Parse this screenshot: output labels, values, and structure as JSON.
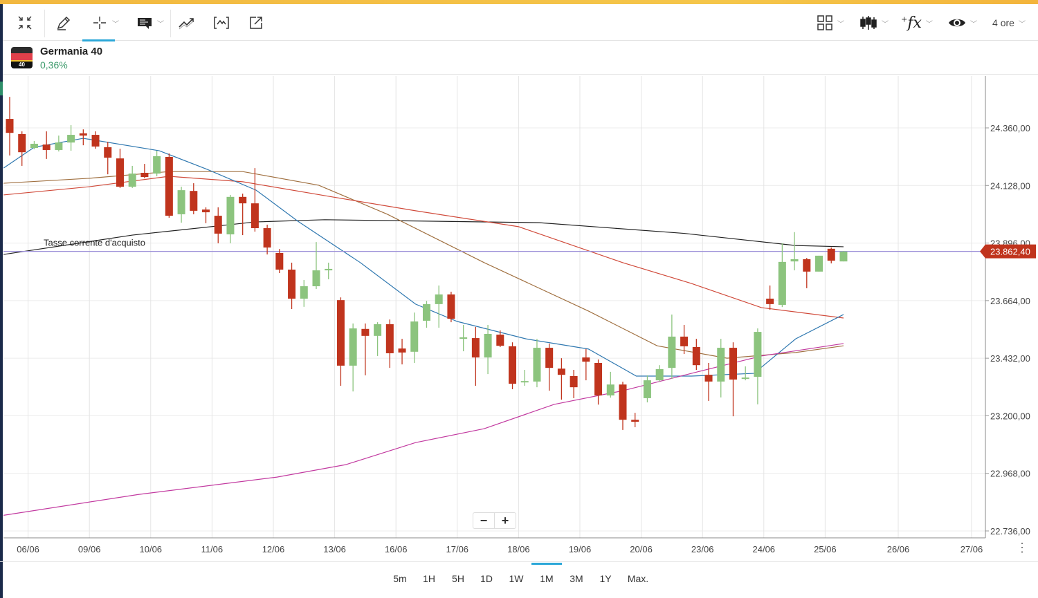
{
  "toolbar": {
    "left_icons": [
      "collapse-icon",
      "pencil-icon",
      "crosshair-icon",
      "comment-icon",
      "trend-icon",
      "indicator-bracket-icon",
      "external-open-icon"
    ],
    "right_icons": [
      "layout-grid-icon",
      "candlestick-icon",
      "function-fx-icon",
      "eye-icon"
    ],
    "interval_label": "4 ore"
  },
  "instrument": {
    "name": "Germania 40",
    "change": "0,36%",
    "flag_label": "40"
  },
  "zoom": {
    "minus": "−",
    "plus": "+"
  },
  "timeframes": [
    "5m",
    "1H",
    "5H",
    "1D",
    "1W",
    "1M",
    "3M",
    "1Y",
    "Max."
  ],
  "selected_timeframe": "1M",
  "more_label": "⋮",
  "colors": {
    "up": "#8cc47e",
    "down": "#c0341d",
    "price_line": "#9c8fd8",
    "ma_black": "#222222",
    "ma_brown": "#a07040",
    "ma_red": "#d04a3a",
    "ma_blue": "#2f78b0",
    "ma_magenta": "#c23aa0"
  },
  "chart_data": {
    "type": "candlestick",
    "y_ticks": [
      "24.360,00",
      "24.128,00",
      "23.896,00",
      "23.664,00",
      "23.432,00",
      "23.200,00",
      "22.968,00",
      "22.736,00"
    ],
    "y_tick_values": [
      24360,
      24128,
      23896,
      23664,
      23432,
      23200,
      22968,
      22736
    ],
    "ylim": [
      22700,
      24560
    ],
    "x_labels": [
      "06/06",
      "09/06",
      "10/06",
      "11/06",
      "12/06",
      "13/06",
      "16/06",
      "17/06",
      "18/06",
      "19/06",
      "20/06",
      "23/06",
      "24/06",
      "25/06",
      "26/06",
      "27/06"
    ],
    "x_label_index": [
      1.5,
      6.5,
      11.5,
      16.5,
      21.5,
      26.5,
      31.5,
      36.5,
      41.5,
      46.5,
      51.5,
      56.5,
      61.5,
      66.5,
      72.5,
      78.5
    ],
    "xlim_index": [
      -0.5,
      79.5
    ],
    "current_price": {
      "label": "Tasse corrente d'acquisto",
      "value": 23862.4,
      "value_label": "23.862,40"
    },
    "ohlc": [
      [
        24396,
        24485,
        24249,
        24340
      ],
      [
        24335,
        24346,
        24207,
        24262
      ],
      [
        24279,
        24307,
        24274,
        24296
      ],
      [
        24293,
        24346,
        24235,
        24271
      ],
      [
        24271,
        24329,
        24265,
        24301
      ],
      [
        24301,
        24371,
        24268,
        24332
      ],
      [
        24338,
        24354,
        24290,
        24329
      ],
      [
        24332,
        24346,
        24276,
        24285
      ],
      [
        24282,
        24304,
        24173,
        24240
      ],
      [
        24237,
        24276,
        24118,
        24123
      ],
      [
        24123,
        24207,
        24118,
        24176
      ],
      [
        24179,
        24215,
        24157,
        24162
      ],
      [
        24176,
        24268,
        24165,
        24246
      ],
      [
        24243,
        24257,
        23998,
        24006
      ],
      [
        24012,
        24123,
        23978,
        24109
      ],
      [
        24106,
        24137,
        24012,
        24026
      ],
      [
        24031,
        24040,
        23976,
        24020
      ],
      [
        24006,
        24040,
        23895,
        23934
      ],
      [
        23931,
        24090,
        23895,
        24082
      ],
      [
        24082,
        24095,
        23928,
        24056
      ],
      [
        24056,
        24198,
        23942,
        23956
      ],
      [
        23956,
        23970,
        23850,
        23878
      ],
      [
        23856,
        23872,
        23775,
        23789
      ],
      [
        23789,
        23817,
        23630,
        23672
      ],
      [
        23672,
        23747,
        23639,
        23722
      ],
      [
        23722,
        23900,
        23711,
        23786
      ],
      [
        23786,
        23817,
        23750,
        23792
      ],
      [
        23666,
        23677,
        23321,
        23402
      ],
      [
        23402,
        23572,
        23298,
        23552
      ],
      [
        23550,
        23572,
        23363,
        23522
      ],
      [
        23522,
        23577,
        23441,
        23569
      ],
      [
        23569,
        23588,
        23393,
        23452
      ],
      [
        23471,
        23510,
        23407,
        23455
      ],
      [
        23458,
        23616,
        23413,
        23580
      ],
      [
        23583,
        23663,
        23555,
        23650
      ],
      [
        23650,
        23725,
        23555,
        23689
      ],
      [
        23689,
        23700,
        23577,
        23591
      ],
      [
        23510,
        23566,
        23460,
        23516
      ],
      [
        23513,
        23558,
        23321,
        23435
      ],
      [
        23435,
        23566,
        23368,
        23530
      ],
      [
        23527,
        23544,
        23477,
        23482
      ],
      [
        23480,
        23496,
        23307,
        23329
      ],
      [
        23335,
        23385,
        23321,
        23340
      ],
      [
        23338,
        23510,
        23315,
        23474
      ],
      [
        23474,
        23491,
        23301,
        23393
      ],
      [
        23390,
        23432,
        23265,
        23365
      ],
      [
        23360,
        23385,
        23271,
        23315
      ],
      [
        23435,
        23469,
        23343,
        23418
      ],
      [
        23413,
        23427,
        23245,
        23282
      ],
      [
        23282,
        23377,
        23273,
        23326
      ],
      [
        23326,
        23337,
        23143,
        23184
      ],
      [
        23184,
        23212,
        23154,
        23176
      ],
      [
        23271,
        23363,
        23254,
        23343
      ],
      [
        23343,
        23404,
        23338,
        23388
      ],
      [
        23393,
        23608,
        23349,
        23519
      ],
      [
        23519,
        23566,
        23449,
        23480
      ],
      [
        23477,
        23510,
        23385,
        23404
      ],
      [
        23365,
        23413,
        23260,
        23338
      ],
      [
        23338,
        23510,
        23274,
        23474
      ],
      [
        23474,
        23496,
        23198,
        23346
      ],
      [
        23349,
        23399,
        23343,
        23354
      ],
      [
        23357,
        23552,
        23246,
        23538
      ],
      [
        23672,
        23725,
        23627,
        23650
      ],
      [
        23647,
        23895,
        23638,
        23820
      ],
      [
        23822,
        23940,
        23786,
        23831
      ],
      [
        23831,
        23836,
        23714,
        23781
      ],
      [
        23781,
        23845,
        23781,
        23845
      ],
      [
        23873,
        23878,
        23814,
        23825
      ],
      [
        23822,
        23864,
        23822,
        23862
      ]
    ],
    "series": [
      {
        "name": "ma_black",
        "color_key": "ma_black",
        "points": [
          [
            -0.5,
            23850
          ],
          [
            10,
            23928
          ],
          [
            20,
            23981
          ],
          [
            25.7,
            23990
          ],
          [
            43.2,
            23978
          ],
          [
            55,
            23935
          ],
          [
            64.1,
            23886
          ],
          [
            68,
            23881
          ]
        ]
      },
      {
        "name": "ma_brown",
        "color_key": "ma_brown",
        "points": [
          [
            -0.5,
            24137
          ],
          [
            6.5,
            24157
          ],
          [
            13,
            24184
          ],
          [
            19,
            24184
          ],
          [
            25.2,
            24129
          ],
          [
            30.8,
            24012
          ],
          [
            38.7,
            23817
          ],
          [
            47.2,
            23622
          ],
          [
            52.8,
            23482
          ],
          [
            58.5,
            23432
          ],
          [
            64.1,
            23455
          ],
          [
            68,
            23482
          ]
        ]
      },
      {
        "name": "ma_red",
        "color_key": "ma_red",
        "points": [
          [
            -0.5,
            24090
          ],
          [
            6.5,
            24123
          ],
          [
            13,
            24165
          ],
          [
            19,
            24143
          ],
          [
            26.3,
            24082
          ],
          [
            33.1,
            24026
          ],
          [
            41.5,
            23962
          ],
          [
            50,
            23817
          ],
          [
            55.6,
            23733
          ],
          [
            61.3,
            23636
          ],
          [
            68,
            23594
          ]
        ]
      },
      {
        "name": "ma_blue",
        "color_key": "ma_blue",
        "points": [
          [
            -0.5,
            24198
          ],
          [
            2,
            24282
          ],
          [
            6,
            24318
          ],
          [
            12.2,
            24268
          ],
          [
            16.1,
            24193
          ],
          [
            20.1,
            24109
          ],
          [
            23.5,
            23984
          ],
          [
            28.6,
            23817
          ],
          [
            33.1,
            23650
          ],
          [
            36.5,
            23580
          ],
          [
            42.1,
            23510
          ],
          [
            47.2,
            23469
          ],
          [
            51.1,
            23360
          ],
          [
            55.6,
            23360
          ],
          [
            60.7,
            23371
          ],
          [
            64.1,
            23510
          ],
          [
            68,
            23608
          ]
        ]
      },
      {
        "name": "ma_magenta",
        "color_key": "ma_magenta",
        "points": [
          [
            -0.5,
            22799
          ],
          [
            10.5,
            22883
          ],
          [
            21.8,
            22953
          ],
          [
            27.4,
            23003
          ],
          [
            33.1,
            23092
          ],
          [
            38.7,
            23148
          ],
          [
            44.4,
            23246
          ],
          [
            50,
            23301
          ],
          [
            55.6,
            23371
          ],
          [
            61.3,
            23441
          ],
          [
            68,
            23491
          ]
        ]
      }
    ]
  }
}
